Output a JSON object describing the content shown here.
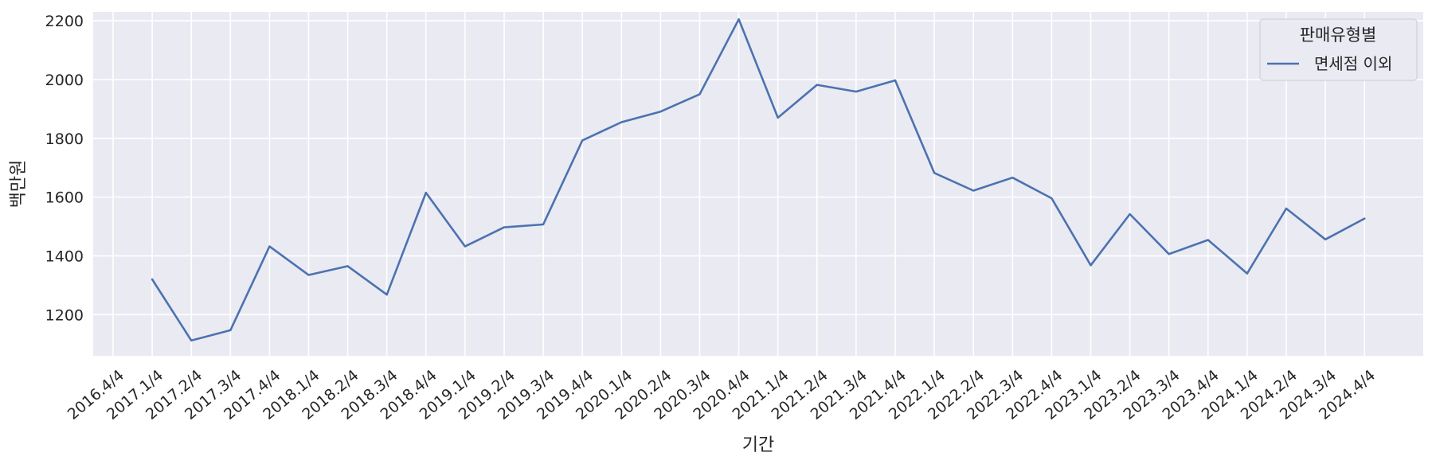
{
  "chart_data": {
    "type": "line",
    "x": [
      "2016.4/4",
      "2017.1/4",
      "2017.2/4",
      "2017.3/4",
      "2017.4/4",
      "2018.1/4",
      "2018.2/4",
      "2018.3/4",
      "2018.4/4",
      "2019.1/4",
      "2019.2/4",
      "2019.3/4",
      "2019.4/4",
      "2020.1/4",
      "2020.2/4",
      "2020.3/4",
      "2020.4/4",
      "2021.1/4",
      "2021.2/4",
      "2021.3/4",
      "2021.4/4",
      "2022.1/4",
      "2022.2/4",
      "2022.3/4",
      "2022.4/4",
      "2023.1/4",
      "2023.2/4",
      "2023.3/4",
      "2023.4/4",
      "2024.1/4",
      "2024.2/4",
      "2024.3/4",
      "2024.4/4"
    ],
    "series": [
      {
        "name": "면세점 이외",
        "color": "#4c72b0",
        "values": [
          null,
          1320,
          1112,
          1147,
          1432,
          1335,
          1365,
          1268,
          1615,
          1432,
          1497,
          1507,
          1793,
          1855,
          1891,
          1950,
          2205,
          1870,
          1982,
          1959,
          1997,
          1682,
          1622,
          1666,
          1596,
          1368,
          1542,
          1406,
          1454,
          1340,
          1561,
          1456,
          1527
        ]
      }
    ],
    "title": "",
    "xlabel": "기간",
    "ylabel": "백만원",
    "ylim": [
      1060,
      2230
    ],
    "yticks": [
      1200,
      1400,
      1600,
      1800,
      2000,
      2200
    ],
    "grid": true,
    "legend": {
      "title": "판매유형별",
      "position": "top-right"
    },
    "background": "#eaeaf2"
  }
}
